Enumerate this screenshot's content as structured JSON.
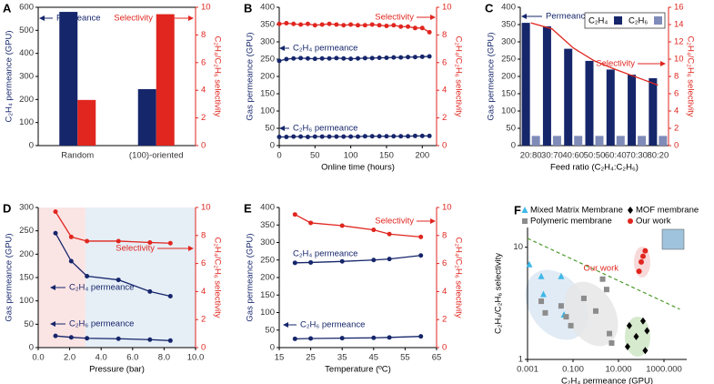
{
  "chart_data": [
    {
      "panel": "A",
      "type": "bar",
      "categories": [
        "Random",
        "(100)-oriented"
      ],
      "series": [
        {
          "name": "Permeance",
          "color": "#16266b",
          "values": [
            580,
            245
          ]
        },
        {
          "name": "Selectivity",
          "color": "#e0261f",
          "axis": "y2",
          "values": [
            3.3,
            9.5
          ]
        }
      ],
      "ylim": [
        0,
        600
      ],
      "yticks": [
        0,
        100,
        200,
        300,
        400,
        500,
        600
      ],
      "y2lim": [
        0,
        10
      ],
      "y2ticks": [
        0,
        2,
        4,
        6,
        8,
        10
      ],
      "y_label": "C₂H₄ permeance (GPU)",
      "y2_label": "C₂H₄/C₂H₆ selectivity",
      "y_color": "#16266b",
      "y2_color": "#e0261f"
    },
    {
      "panel": "B",
      "type": "line",
      "x": [
        0,
        10,
        20,
        30,
        40,
        50,
        60,
        70,
        80,
        90,
        100,
        110,
        120,
        130,
        140,
        150,
        160,
        170,
        180,
        190,
        200,
        210
      ],
      "series": [
        {
          "name": "Selectivity",
          "color": "#e0261f",
          "axis": "y2",
          "marker": "circle",
          "values": [
            8.8,
            8.85,
            8.8,
            8.75,
            8.8,
            8.7,
            8.75,
            8.8,
            8.75,
            8.7,
            8.75,
            8.7,
            8.7,
            8.75,
            8.7,
            8.65,
            8.7,
            8.6,
            8.6,
            8.5,
            8.5,
            8.2
          ]
        },
        {
          "name": "C₂H₄ permeance",
          "color": "#16266b",
          "marker": "circle",
          "values": [
            245,
            250,
            252,
            253,
            252,
            251,
            252,
            252,
            253,
            252,
            251,
            252,
            253,
            253,
            254,
            254,
            255,
            255,
            256,
            256,
            257,
            258
          ]
        },
        {
          "name": "C₂H₆ permeance",
          "color": "#16266b",
          "marker": "circle",
          "values": [
            25,
            25,
            26,
            26,
            25,
            26,
            26,
            26,
            26,
            26,
            26,
            26,
            27,
            27,
            27,
            27,
            27,
            27,
            27,
            28,
            28,
            28
          ]
        }
      ],
      "xlim": [
        0,
        220
      ],
      "xticks": [
        0,
        50,
        100,
        150,
        200
      ],
      "ylim": [
        0,
        400
      ],
      "yticks": [
        0,
        50,
        100,
        150,
        200,
        250,
        300,
        350,
        400
      ],
      "y2lim": [
        0,
        10
      ],
      "y2ticks": [
        0,
        2,
        4,
        6,
        8,
        10
      ],
      "x_label": "Online time (hours)",
      "y_label": "Gas permeance (GPU)",
      "y2_label": "C₂H₄/C₂H₆ selectivity",
      "y_color": "#16266b",
      "y2_color": "#e0261f"
    },
    {
      "panel": "C",
      "type": "bar",
      "categories": [
        "20:80",
        "30:70",
        "40:60",
        "50:50",
        "60:40",
        "70:30",
        "80:20"
      ],
      "series": [
        {
          "name": "C₂H₄",
          "color": "#16266b",
          "values": [
            355,
            345,
            280,
            245,
            220,
            205,
            195
          ]
        },
        {
          "name": "C₂H₆",
          "color": "#7f8bb8",
          "values": [
            28,
            28,
            28,
            28,
            28,
            28,
            28
          ]
        },
        {
          "name": "Selectivity",
          "color": "#e0261f",
          "axis": "y2",
          "kind": "line",
          "values": [
            14.2,
            13.5,
            11.3,
            9.8,
            8.8,
            7.9,
            7.0
          ]
        }
      ],
      "ylim": [
        0,
        400
      ],
      "yticks": [
        0,
        50,
        100,
        150,
        200,
        250,
        300,
        350,
        400
      ],
      "y2lim": [
        0,
        16
      ],
      "y2ticks": [
        0,
        2,
        4,
        6,
        8,
        10,
        12,
        14,
        16
      ],
      "annotations": [
        "Permeance"
      ],
      "legend": "upper right",
      "x_label": "Feed ratio (C₂H₄:C₂H₆)",
      "y_label": "Gas permeance (GPU)",
      "y2_label": "C₂H₄/C₂H₆ selectivity",
      "y_color": "#16266b",
      "y2_color": "#e0261f"
    },
    {
      "panel": "D",
      "type": "line",
      "x": [
        1.1,
        2.1,
        3.1,
        5.1,
        7.1,
        8.4
      ],
      "series": [
        {
          "name": "Selectivity",
          "color": "#e0261f",
          "axis": "y2",
          "marker": "circle",
          "values": [
            9.7,
            7.9,
            7.6,
            7.6,
            7.5,
            7.45
          ]
        },
        {
          "name": "C₂H₄ permeance",
          "color": "#16266b",
          "marker": "circle",
          "values": [
            245,
            185,
            153,
            145,
            120,
            110
          ]
        },
        {
          "name": "C₂H₆ permeance",
          "color": "#16266b",
          "marker": "circle",
          "values": [
            25,
            22,
            20,
            19,
            17,
            15
          ]
        }
      ],
      "regions": [
        {
          "from": 0,
          "to": 3,
          "color": "#fbe4e4"
        },
        {
          "from": 3,
          "to": 10,
          "color": "#e6eef6"
        }
      ],
      "xlim": [
        0,
        10
      ],
      "xticks": [
        {
          "value": 0,
          "label": "0.0"
        },
        {
          "value": 2,
          "label": "2.0"
        },
        {
          "value": 4,
          "label": "4.0"
        },
        {
          "value": 6,
          "label": "6.0"
        },
        {
          "value": 8,
          "label": "8.0"
        },
        {
          "value": 10,
          "label": "10.0"
        }
      ],
      "ylim": [
        0,
        300
      ],
      "yticks": [
        0,
        50,
        100,
        150,
        200,
        250,
        300
      ],
      "y2lim": [
        0,
        10
      ],
      "y2ticks": [
        0,
        2,
        4,
        6,
        8,
        10
      ],
      "x_label": "Pressure (bar)",
      "y_label": "Gas permeance (GPU)",
      "y2_label": "C₂H₄/C₂H₆ selectivity",
      "y_color": "#16266b",
      "y2_color": "#e0261f"
    },
    {
      "panel": "E",
      "type": "line",
      "x": [
        20,
        25,
        35,
        45,
        50,
        60
      ],
      "series": [
        {
          "name": "Selectivity",
          "color": "#e0261f",
          "axis": "y2",
          "marker": "circle",
          "values": [
            9.5,
            8.9,
            8.7,
            8.4,
            8.1,
            7.9
          ]
        },
        {
          "name": "C₂H₄ permeance",
          "color": "#16266b",
          "marker": "circle",
          "values": [
            242,
            243,
            246,
            250,
            253,
            263
          ]
        },
        {
          "name": "C₂H₆ permeance",
          "color": "#16266b",
          "marker": "circle",
          "values": [
            25,
            26,
            27,
            28,
            29,
            32
          ]
        }
      ],
      "xlim": [
        15,
        65
      ],
      "xticks": [
        15,
        25,
        35,
        45,
        55,
        65
      ],
      "ylim": [
        0,
        400
      ],
      "yticks": [
        0,
        50,
        100,
        150,
        200,
        250,
        300,
        350,
        400
      ],
      "y2lim": [
        0,
        10
      ],
      "y2ticks": [
        0,
        2,
        4,
        6,
        8,
        10
      ],
      "x_label": "Temperature (ºC)",
      "y_label": "Gas permeance (GPU)",
      "y2_label": "C₂H₄/C₂H₆ selectivity",
      "y_color": "#16266b",
      "y2_color": "#e0261f"
    },
    {
      "panel": "F",
      "type": "scatter",
      "log_scale": true,
      "series": [
        {
          "name": "Mixed Matrix Membrane",
          "color": "#3fb8e8",
          "marker": "triangle",
          "x": [
            0.0012,
            0.004,
            0.005,
            0.03,
            0.04
          ],
          "values": [
            7,
            5.5,
            3.8,
            5.5,
            2.5
          ]
        },
        {
          "name": "Polymeric membrane",
          "color": "#8c8c8c",
          "marker": "square",
          "x": [
            0.004,
            0.006,
            0.03,
            0.05,
            0.08,
            0.3,
            1,
            2,
            3,
            4,
            5
          ],
          "values": [
            3.3,
            2.6,
            3.0,
            2.4,
            2.0,
            3.5,
            2.7,
            5.2,
            4.2,
            1.7,
            1.4
          ]
        },
        {
          "name": "MOF membrane",
          "color": "#000000",
          "marker": "diamond",
          "x": [
            25,
            30,
            60,
            120,
            180,
            150
          ],
          "values": [
            1.3,
            2.0,
            1.6,
            2.2,
            1.8,
            1.2
          ]
        },
        {
          "name": "Our work",
          "color": "#e0261f",
          "marker": "circle",
          "x": [
            80,
            100,
            120,
            150
          ],
          "values": [
            6.1,
            7.4,
            8.3,
            9.3
          ]
        }
      ],
      "trend_line": {
        "x": [
          0.001,
          5000
        ],
        "y": [
          12,
          2.8
        ],
        "color": "#4c9a2a"
      },
      "annotations": [
        "Our work"
      ],
      "legend": "above",
      "xlim": [
        0.001,
        10000
      ],
      "xticks": [
        0.001,
        {
          "value": 0.1,
          "label": "0.100"
        },
        {
          "value": 10,
          "label": "10.000"
        },
        {
          "value": 1000,
          "label": "1000.000"
        }
      ],
      "ylim": [
        1,
        15
      ],
      "yticks": [
        1,
        10
      ],
      "x_label": "C₂H₄ permeance (GPU)",
      "y_label": "C₂H₄/C₂H₆ selectivity"
    }
  ]
}
